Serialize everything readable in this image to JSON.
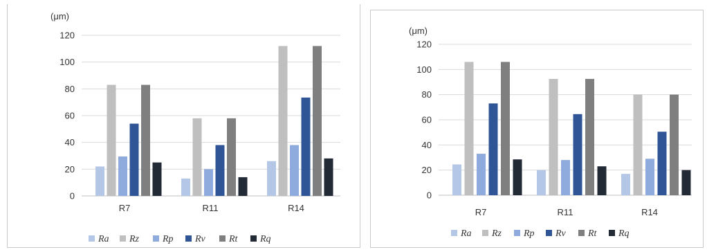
{
  "colors": {
    "Ra": "#b4c7e7",
    "Rz": "#bfbfbf",
    "Rp": "#8faadc",
    "Rv": "#2f5597",
    "Rt": "#7f7f7f",
    "Rq": "#222a35",
    "grid": "#d9d9d9"
  },
  "chart_data": [
    {
      "type": "bar",
      "unit_label": "(μm)",
      "categories": [
        "R7",
        "R11",
        "R14"
      ],
      "ylim": [
        0,
        120
      ],
      "yticks": [
        "0",
        "20",
        "40",
        "60",
        "80",
        "100",
        "120"
      ],
      "grid": true,
      "legend_position": "bottom",
      "series": [
        {
          "name": "Ra",
          "values": [
            22,
            13,
            26
          ]
        },
        {
          "name": "Rz",
          "values": [
            83,
            58,
            112
          ]
        },
        {
          "name": "Rp",
          "values": [
            29.5,
            20,
            38
          ]
        },
        {
          "name": "Rv",
          "values": [
            54,
            38,
            73.5
          ]
        },
        {
          "name": "Rt",
          "values": [
            83,
            58,
            112
          ]
        },
        {
          "name": "Rq",
          "values": [
            25,
            14,
            28
          ]
        }
      ]
    },
    {
      "type": "bar",
      "unit_label": "(μm)",
      "categories": [
        "R7",
        "R11",
        "R14"
      ],
      "ylim": [
        0,
        120
      ],
      "yticks": [
        "0",
        "20",
        "40",
        "60",
        "80",
        "100",
        "120"
      ],
      "grid": true,
      "legend_position": "bottom",
      "series": [
        {
          "name": "Ra",
          "values": [
            24.5,
            20,
            17
          ]
        },
        {
          "name": "Rz",
          "values": [
            106,
            92.5,
            80
          ]
        },
        {
          "name": "Rp",
          "values": [
            33,
            28,
            29
          ]
        },
        {
          "name": "Rv",
          "values": [
            73,
            64.5,
            50.5
          ]
        },
        {
          "name": "Rt",
          "values": [
            106,
            92.5,
            80
          ]
        },
        {
          "name": "Rq",
          "values": [
            28.5,
            23,
            20
          ]
        }
      ]
    }
  ]
}
